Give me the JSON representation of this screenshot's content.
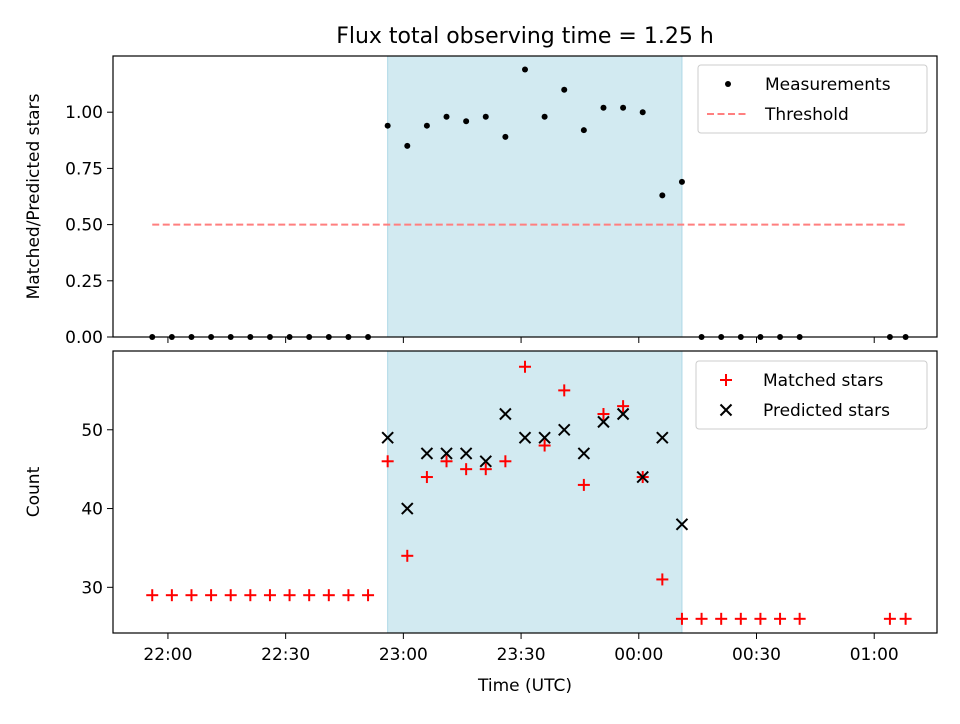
{
  "title": "Flux total observing time = 1.25 h",
  "shaded_interval": {
    "start": "22:56",
    "end": "00:11",
    "color": "#add8e6"
  },
  "x_axis": {
    "label": "Time (UTC)",
    "range": [
      "21:46",
      "01:16"
    ],
    "ticks": [
      "22:00",
      "22:30",
      "23:00",
      "23:30",
      "00:00",
      "00:30",
      "01:00"
    ]
  },
  "chart_data": [
    {
      "type": "scatter",
      "ylabel": "Matched/Predicted stars",
      "ylim": [
        0,
        1.25
      ],
      "yticks": [
        "0.00",
        "0.25",
        "0.50",
        "0.75",
        "1.00"
      ],
      "legend_position": "top-right",
      "series": [
        {
          "name": "Measurements",
          "marker": "dot",
          "color": "#000000",
          "x": [
            "21:56",
            "22:01",
            "22:06",
            "22:11",
            "22:16",
            "22:21",
            "22:26",
            "22:31",
            "22:36",
            "22:41",
            "22:46",
            "22:51",
            "22:56",
            "23:01",
            "23:06",
            "23:11",
            "23:16",
            "23:21",
            "23:26",
            "23:31",
            "23:36",
            "23:41",
            "23:46",
            "23:51",
            "23:56",
            "00:01",
            "00:06",
            "00:11",
            "00:16",
            "00:21",
            "00:26",
            "00:31",
            "00:36",
            "00:41",
            "01:04",
            "01:08"
          ],
          "y": [
            0,
            0,
            0,
            0,
            0,
            0,
            0,
            0,
            0,
            0,
            0,
            0,
            0.94,
            0.85,
            0.94,
            0.98,
            0.96,
            0.98,
            0.89,
            1.19,
            0.98,
            1.1,
            0.92,
            1.02,
            1.02,
            1.0,
            0.63,
            0.69,
            0,
            0,
            0,
            0,
            0,
            0,
            0,
            0
          ]
        },
        {
          "name": "Threshold",
          "type": "line",
          "style": "dashed",
          "color": "#ff7f7f",
          "x": [
            "21:56",
            "01:08"
          ],
          "y": [
            0.5,
            0.5
          ]
        }
      ]
    },
    {
      "type": "scatter",
      "ylabel": "Count",
      "ylim": [
        24.2,
        60
      ],
      "yticks": [
        "30",
        "40",
        "50"
      ],
      "legend_position": "top-right",
      "series": [
        {
          "name": "Matched stars",
          "marker": "plus",
          "color": "#ff0000",
          "x": [
            "21:56",
            "22:01",
            "22:06",
            "22:11",
            "22:16",
            "22:21",
            "22:26",
            "22:31",
            "22:36",
            "22:41",
            "22:46",
            "22:51",
            "22:56",
            "23:01",
            "23:06",
            "23:11",
            "23:16",
            "23:21",
            "23:26",
            "23:31",
            "23:36",
            "23:41",
            "23:46",
            "23:51",
            "23:56",
            "00:01",
            "00:06",
            "00:11",
            "00:16",
            "00:21",
            "00:26",
            "00:31",
            "00:36",
            "00:41",
            "01:04",
            "01:08"
          ],
          "y": [
            29,
            29,
            29,
            29,
            29,
            29,
            29,
            29,
            29,
            29,
            29,
            29,
            46,
            34,
            44,
            46,
            45,
            45,
            46,
            58,
            48,
            55,
            43,
            52,
            53,
            44,
            31,
            26,
            26,
            26,
            26,
            26,
            26,
            26,
            26,
            26
          ]
        },
        {
          "name": "Predicted stars",
          "marker": "x",
          "color": "#000000",
          "x": [
            "22:56",
            "23:01",
            "23:06",
            "23:11",
            "23:16",
            "23:21",
            "23:26",
            "23:31",
            "23:36",
            "23:41",
            "23:46",
            "23:51",
            "23:56",
            "00:01",
            "00:06",
            "00:11"
          ],
          "y": [
            49,
            40,
            47,
            47,
            47,
            46,
            52,
            49,
            49,
            50,
            47,
            51,
            52,
            44,
            49,
            38
          ]
        }
      ]
    }
  ]
}
